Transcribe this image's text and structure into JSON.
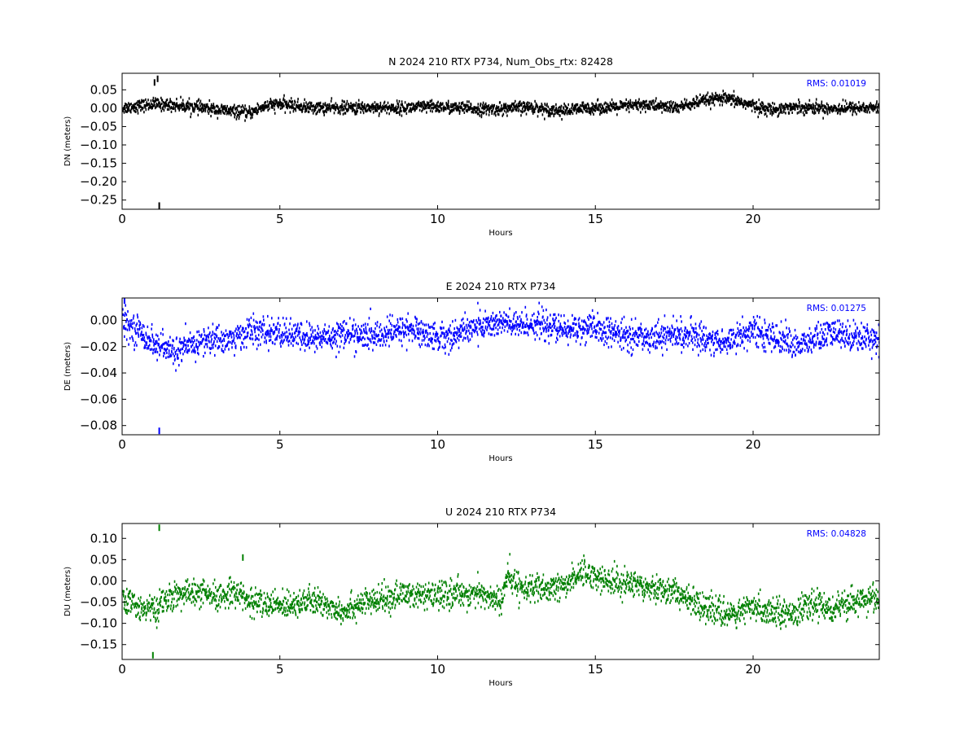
{
  "chart_data": [
    {
      "type": "scatter",
      "title": "N 2024 210 RTX  P734, Num_Obs_rtx: 82428",
      "xlabel": "Hours",
      "ylabel": "DN (meters)",
      "xlim": [
        0,
        24
      ],
      "ylim": [
        -0.275,
        0.095
      ],
      "xticks": [
        0,
        5,
        10,
        15,
        20
      ],
      "yticks": [
        0.05,
        0.0,
        -0.05,
        -0.1,
        -0.15,
        -0.2,
        -0.25
      ],
      "ytick_labels": [
        "0.05",
        "0.00",
        "−0.05",
        "−0.10",
        "−0.15",
        "−0.20",
        "−0.25"
      ],
      "annotation": "RMS:  0.01019",
      "color": "#000000",
      "series": [
        {
          "x": [
            0,
            0.5,
            1,
            1.5,
            2,
            2.5,
            3,
            3.5,
            4,
            4.5,
            5,
            5.5,
            6,
            6.5,
            7,
            7.5,
            8,
            8.5,
            9,
            9.5,
            10,
            10.5,
            11,
            11.5,
            12,
            12.5,
            13,
            13.5,
            14,
            14.5,
            15,
            15.5,
            16,
            16.5,
            17,
            17.5,
            18,
            18.5,
            19,
            19.5,
            20,
            20.5,
            21,
            21.5,
            22,
            22.5,
            23,
            23.5,
            24
          ],
          "y": [
            0.0,
            0.005,
            0.01,
            0.008,
            0.005,
            0.0,
            -0.005,
            -0.01,
            -0.015,
            0.005,
            0.01,
            0.005,
            0.0,
            0.0,
            0.0,
            0.0,
            0.002,
            0.0,
            0.0,
            0.002,
            0.003,
            0.0,
            -0.002,
            -0.004,
            -0.003,
            0.0,
            0.002,
            -0.005,
            -0.008,
            -0.003,
            0.002,
            0.0,
            0.005,
            0.008,
            0.005,
            0.0,
            0.01,
            0.02,
            0.025,
            0.018,
            0.005,
            -0.005,
            0.0,
            0.002,
            0.0,
            -0.002,
            0.0,
            0.0,
            0.0
          ],
          "spread": 0.018
        }
      ],
      "outliers": [
        {
          "x": 1.0,
          "y": 0.07
        },
        {
          "x": 1.1,
          "y": 0.08
        },
        {
          "x": 1.15,
          "y": -0.265
        }
      ]
    },
    {
      "type": "scatter",
      "title": "E 2024 210 RTX  P734",
      "xlabel": "Hours",
      "ylabel": "DE (meters)",
      "xlim": [
        0,
        24
      ],
      "ylim": [
        -0.087,
        0.017
      ],
      "xticks": [
        0,
        5,
        10,
        15,
        20
      ],
      "yticks": [
        0.0,
        -0.02,
        -0.04,
        -0.06,
        -0.08
      ],
      "ytick_labels": [
        "0.00",
        "−0.02",
        "−0.04",
        "−0.06",
        "−0.08"
      ],
      "annotation": "RMS:  0.01275",
      "color": "#0000ff",
      "series": [
        {
          "x": [
            0,
            0.5,
            1,
            1.5,
            2,
            2.5,
            3,
            3.5,
            4,
            4.5,
            5,
            5.5,
            6,
            6.5,
            7,
            7.5,
            8,
            8.5,
            9,
            9.5,
            10,
            10.5,
            11,
            11.5,
            12,
            12.5,
            13,
            13.5,
            14,
            14.5,
            15,
            15.5,
            16,
            16.5,
            17,
            17.5,
            18,
            18.5,
            19,
            19.5,
            20,
            20.5,
            21,
            21.5,
            22,
            22.5,
            23,
            23.5,
            24
          ],
          "y": [
            -0.002,
            -0.008,
            -0.018,
            -0.024,
            -0.022,
            -0.016,
            -0.015,
            -0.015,
            -0.008,
            -0.01,
            -0.01,
            -0.012,
            -0.014,
            -0.013,
            -0.01,
            -0.012,
            -0.012,
            -0.01,
            -0.006,
            -0.01,
            -0.013,
            -0.012,
            -0.006,
            -0.004,
            -0.002,
            -0.005,
            -0.002,
            -0.005,
            -0.008,
            -0.006,
            -0.007,
            -0.01,
            -0.012,
            -0.013,
            -0.012,
            -0.011,
            -0.012,
            -0.014,
            -0.018,
            -0.012,
            -0.008,
            -0.013,
            -0.015,
            -0.02,
            -0.014,
            -0.01,
            -0.012,
            -0.013,
            -0.014
          ],
          "spread": 0.012
        }
      ],
      "outliers": [
        {
          "x": 1.15,
          "y": -0.084
        },
        {
          "x": 0.05,
          "y": 0.015
        }
      ]
    },
    {
      "type": "scatter",
      "title": "U 2024 210 RTX  P734",
      "xlabel": "Hours",
      "ylabel": "DU (meters)",
      "xlim": [
        0,
        24
      ],
      "ylim": [
        -0.185,
        0.135
      ],
      "xticks": [
        0,
        5,
        10,
        15,
        20
      ],
      "yticks": [
        0.1,
        0.05,
        0.0,
        -0.05,
        -0.1,
        -0.15
      ],
      "ytick_labels": [
        "0.10",
        "0.05",
        "0.00",
        "−0.05",
        "−0.10",
        "−0.15"
      ],
      "annotation": "RMS:  0.04828",
      "color": "#008000",
      "series": [
        {
          "x": [
            0,
            0.5,
            1,
            1.5,
            2,
            2.5,
            3,
            3.5,
            4,
            4.5,
            5,
            5.5,
            6,
            6.5,
            7,
            7.5,
            8,
            8.5,
            9,
            9.5,
            10,
            10.5,
            11,
            11.5,
            12,
            12.2,
            12.5,
            13,
            13.5,
            14,
            14.5,
            15,
            15.5,
            16,
            16.5,
            17,
            17.5,
            18,
            18.5,
            19,
            19.5,
            20,
            20.5,
            21,
            21.5,
            22,
            22.5,
            23,
            23.5,
            24
          ],
          "y": [
            -0.05,
            -0.06,
            -0.07,
            -0.04,
            -0.03,
            -0.03,
            -0.045,
            -0.02,
            -0.05,
            -0.055,
            -0.06,
            -0.05,
            -0.05,
            -0.06,
            -0.07,
            -0.055,
            -0.05,
            -0.04,
            -0.03,
            -0.04,
            -0.035,
            -0.03,
            -0.03,
            -0.035,
            -0.05,
            0.01,
            -0.01,
            -0.02,
            -0.025,
            -0.01,
            0.02,
            0.01,
            -0.005,
            -0.005,
            -0.01,
            -0.02,
            -0.025,
            -0.05,
            -0.06,
            -0.08,
            -0.075,
            -0.065,
            -0.07,
            -0.075,
            -0.07,
            -0.055,
            -0.065,
            -0.06,
            -0.04,
            -0.045
          ],
          "spread": 0.035
        }
      ],
      "outliers": [
        {
          "x": 1.15,
          "y": 0.125
        },
        {
          "x": 0.95,
          "y": -0.175
        },
        {
          "x": 3.8,
          "y": 0.055
        }
      ]
    }
  ]
}
